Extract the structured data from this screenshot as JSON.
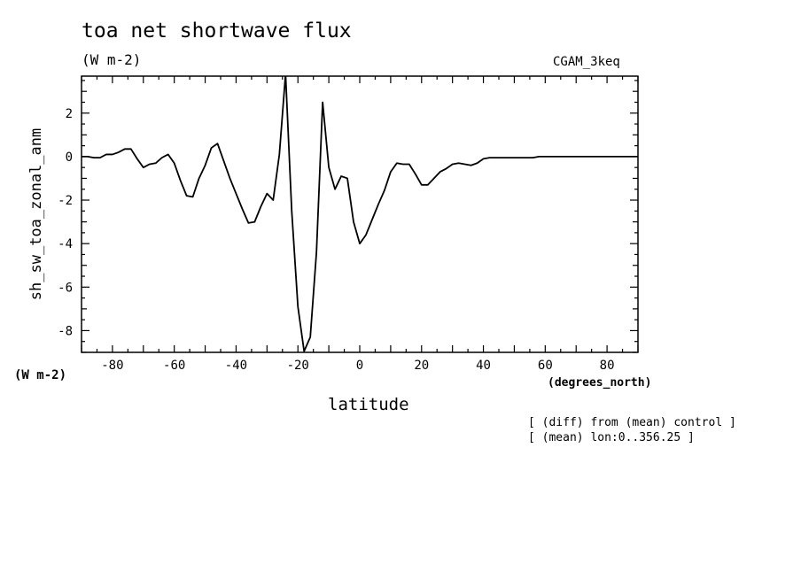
{
  "chart_data": {
    "type": "line",
    "title": "toa net shortwave flux",
    "units": "(W m-2)",
    "dataset": "CGAM_3keq",
    "ylabel": "sh_sw_toa_zonal_anm",
    "y_units": "(W m-2)",
    "xlabel": "latitude",
    "x_units": "(degrees_north)",
    "notes": [
      "[ (diff) from (mean) control ]",
      "[ (mean) lon:0..356.25 ]"
    ],
    "xlim": [
      -90,
      90
    ],
    "ylim": [
      -9,
      3.7
    ],
    "x_ticks": [
      -80,
      -60,
      -40,
      -20,
      0,
      20,
      40,
      60,
      80
    ],
    "y_ticks": [
      2,
      0,
      -2,
      -4,
      -6,
      -8
    ],
    "x_tick_labels": [
      "-80",
      "-60",
      "-40",
      "-20",
      "0",
      "20",
      "40",
      "60",
      "80"
    ],
    "y_tick_labels": [
      "2",
      "0",
      "-2",
      "-4",
      "-6",
      "-8"
    ],
    "grid": false,
    "series": [
      {
        "x": [
          -90,
          -88,
          -86,
          -84,
          -82,
          -80,
          -78,
          -76,
          -74,
          -72,
          -70,
          -68,
          -66,
          -64,
          -62,
          -60,
          -58,
          -56,
          -54,
          -52,
          -50,
          -48,
          -46,
          -44,
          -42,
          -40,
          -38,
          -36,
          -34,
          -32,
          -30,
          -28,
          -26,
          -24,
          -22,
          -20,
          -18,
          -16,
          -14,
          -12,
          -10,
          -8,
          -6,
          -4,
          -2,
          0,
          2,
          4,
          6,
          8,
          10,
          12,
          14,
          16,
          18,
          20,
          22,
          24,
          26,
          28,
          30,
          32,
          34,
          36,
          38,
          40,
          42,
          44,
          46,
          48,
          50,
          52,
          54,
          56,
          58,
          60,
          62,
          64,
          66,
          68,
          70,
          72,
          74,
          76,
          78,
          80,
          82,
          84,
          86,
          88,
          90
        ],
        "y": [
          0.0,
          0.0,
          -0.05,
          -0.05,
          0.1,
          0.1,
          0.2,
          0.35,
          0.35,
          -0.1,
          -0.5,
          -0.35,
          -0.3,
          -0.05,
          0.1,
          -0.3,
          -1.1,
          -1.8,
          -1.85,
          -1.0,
          -0.4,
          0.4,
          0.6,
          -0.2,
          -1.0,
          -1.7,
          -2.4,
          -3.05,
          -3.0,
          -2.3,
          -1.7,
          -2.0,
          0.1,
          3.8,
          -2.5,
          -6.9,
          -8.95,
          -8.3,
          -4.4,
          2.5,
          -0.5,
          -1.5,
          -0.9,
          -1.0,
          -3.0,
          -4.0,
          -3.6,
          -2.9,
          -2.2,
          -1.55,
          -0.7,
          -0.3,
          -0.35,
          -0.35,
          -0.8,
          -1.3,
          -1.3,
          -1.0,
          -0.7,
          -0.55,
          -0.35,
          -0.3,
          -0.35,
          -0.4,
          -0.3,
          -0.1,
          -0.05,
          -0.05,
          -0.05,
          -0.05,
          -0.05,
          -0.05,
          -0.05,
          -0.05,
          0.0,
          0.0,
          0.0,
          0.0,
          0.0,
          0.0,
          0.0,
          0.0,
          0.0,
          0.0,
          0.0,
          0.0,
          0.0,
          0.0,
          0.0,
          0.0,
          0.0
        ],
        "color": "#000000"
      }
    ]
  }
}
